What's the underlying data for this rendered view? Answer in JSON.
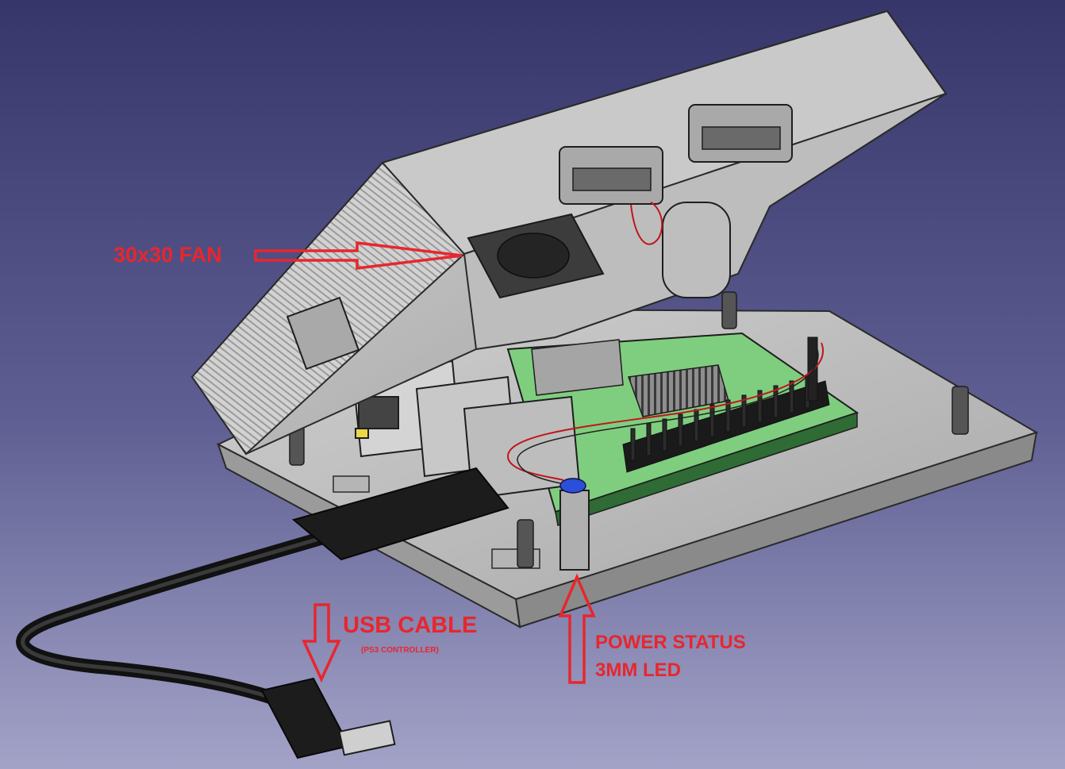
{
  "annotations": {
    "fan": "30x30 FAN",
    "usb_cable": "USB CABLE",
    "usb_cable_sub": "(PS3 CONTROLLER)",
    "led_line1": "POWER STATUS",
    "led_line2": "3MM LED"
  },
  "colors": {
    "background_top": "#3a3a6c",
    "background_bottom": "#9c9cc4",
    "annotation": "#e8262d",
    "case_grey": "#c4c4c4",
    "pcb_green": "#7fce7f",
    "cable_black": "#1c1c1c"
  }
}
